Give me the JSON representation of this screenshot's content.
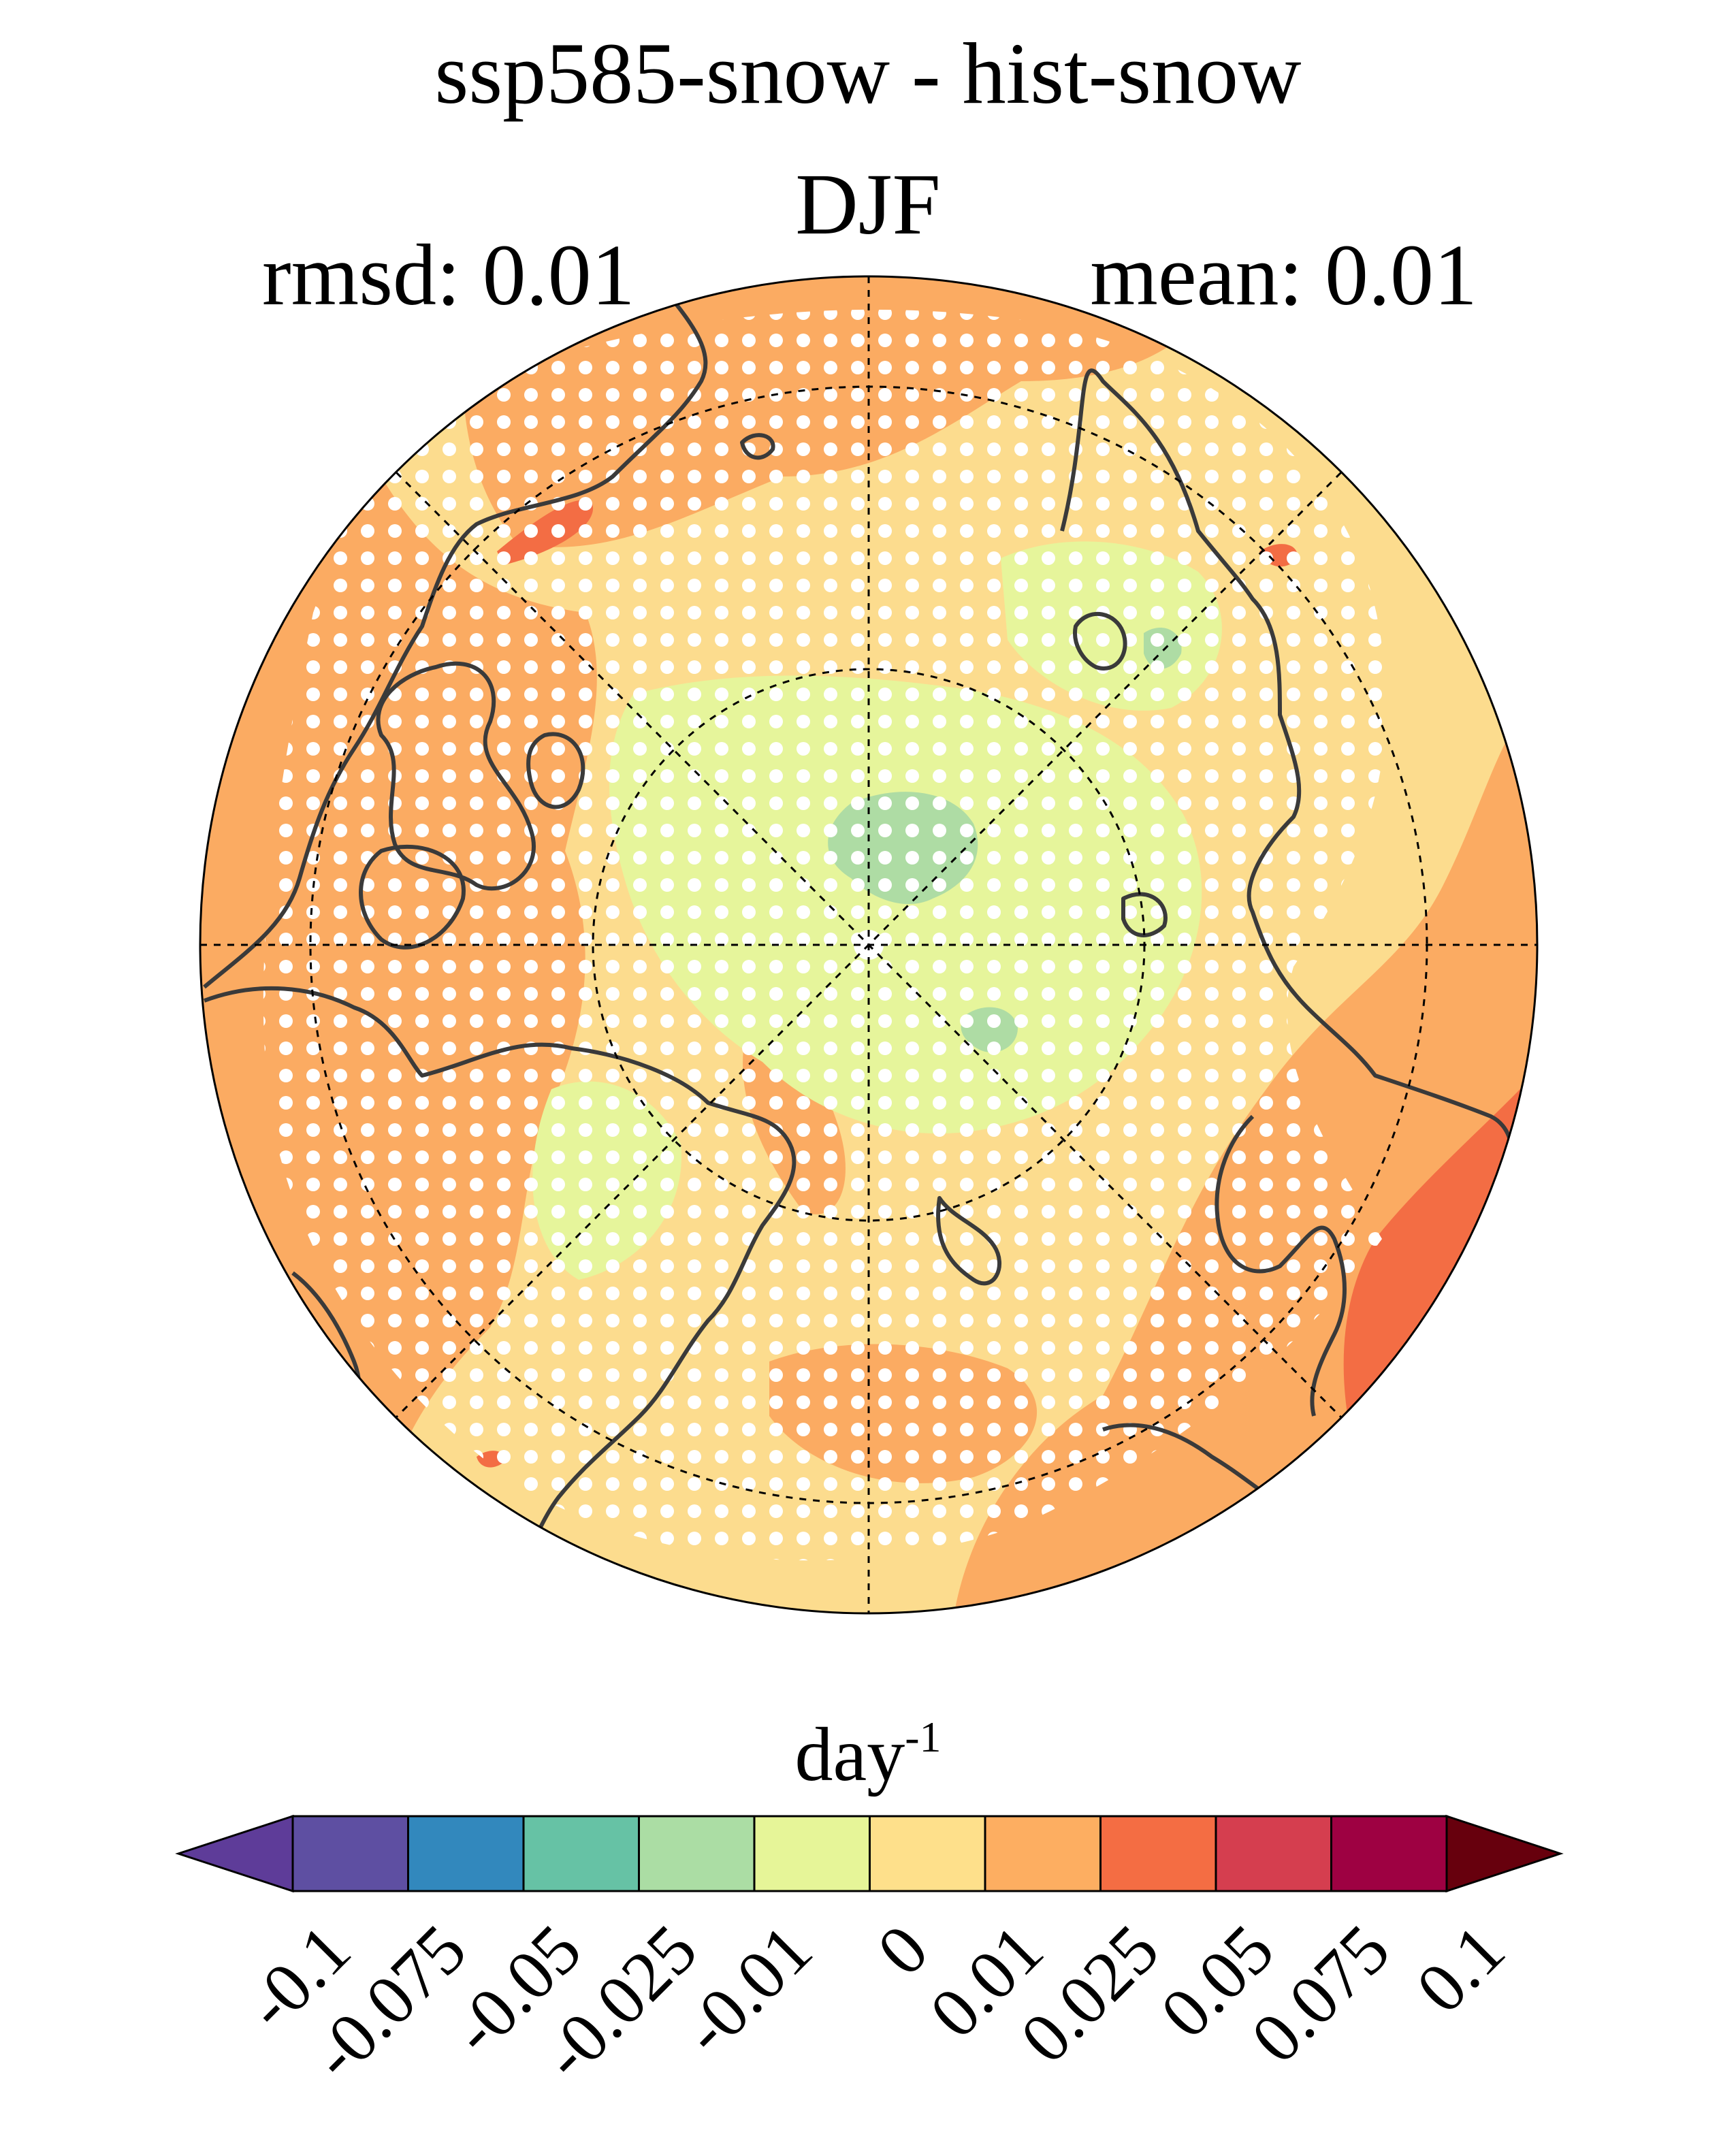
{
  "figure": {
    "title": "ssp585-snow - hist-snow",
    "season": "DJF",
    "rmsd_text": "rmsd: 0.01",
    "mean_text": "mean: 0.01"
  },
  "map": {
    "projection": "north-polar-stereographic",
    "graticule": "dashed",
    "stippling": "white dots mark significant cells",
    "colors": {
      "ocean_base": "#FCDC8E",
      "land_warm": "#FBAB62",
      "strong_warm": "#F36D44",
      "slight_cool": "#E6F59B",
      "cool": "#AEDCA4",
      "coastline": "#3a3a3a"
    }
  },
  "colorbar": {
    "units": "day",
    "units_exponent": "-1",
    "levels": [
      "-0.1",
      "-0.075",
      "-0.05",
      "-0.025",
      "-0.01",
      "0",
      "0.01",
      "0.025",
      "0.05",
      "0.075",
      "0.1"
    ],
    "colors": [
      "#5E4FA2",
      "#3288BD",
      "#66C2A5",
      "#ABDDA4",
      "#E6F598",
      "#FEE08B",
      "#FDAE61",
      "#F46D43",
      "#D53E4F",
      "#9E0142"
    ],
    "under_color": "#5E3C99",
    "over_color": "#67000D"
  }
}
